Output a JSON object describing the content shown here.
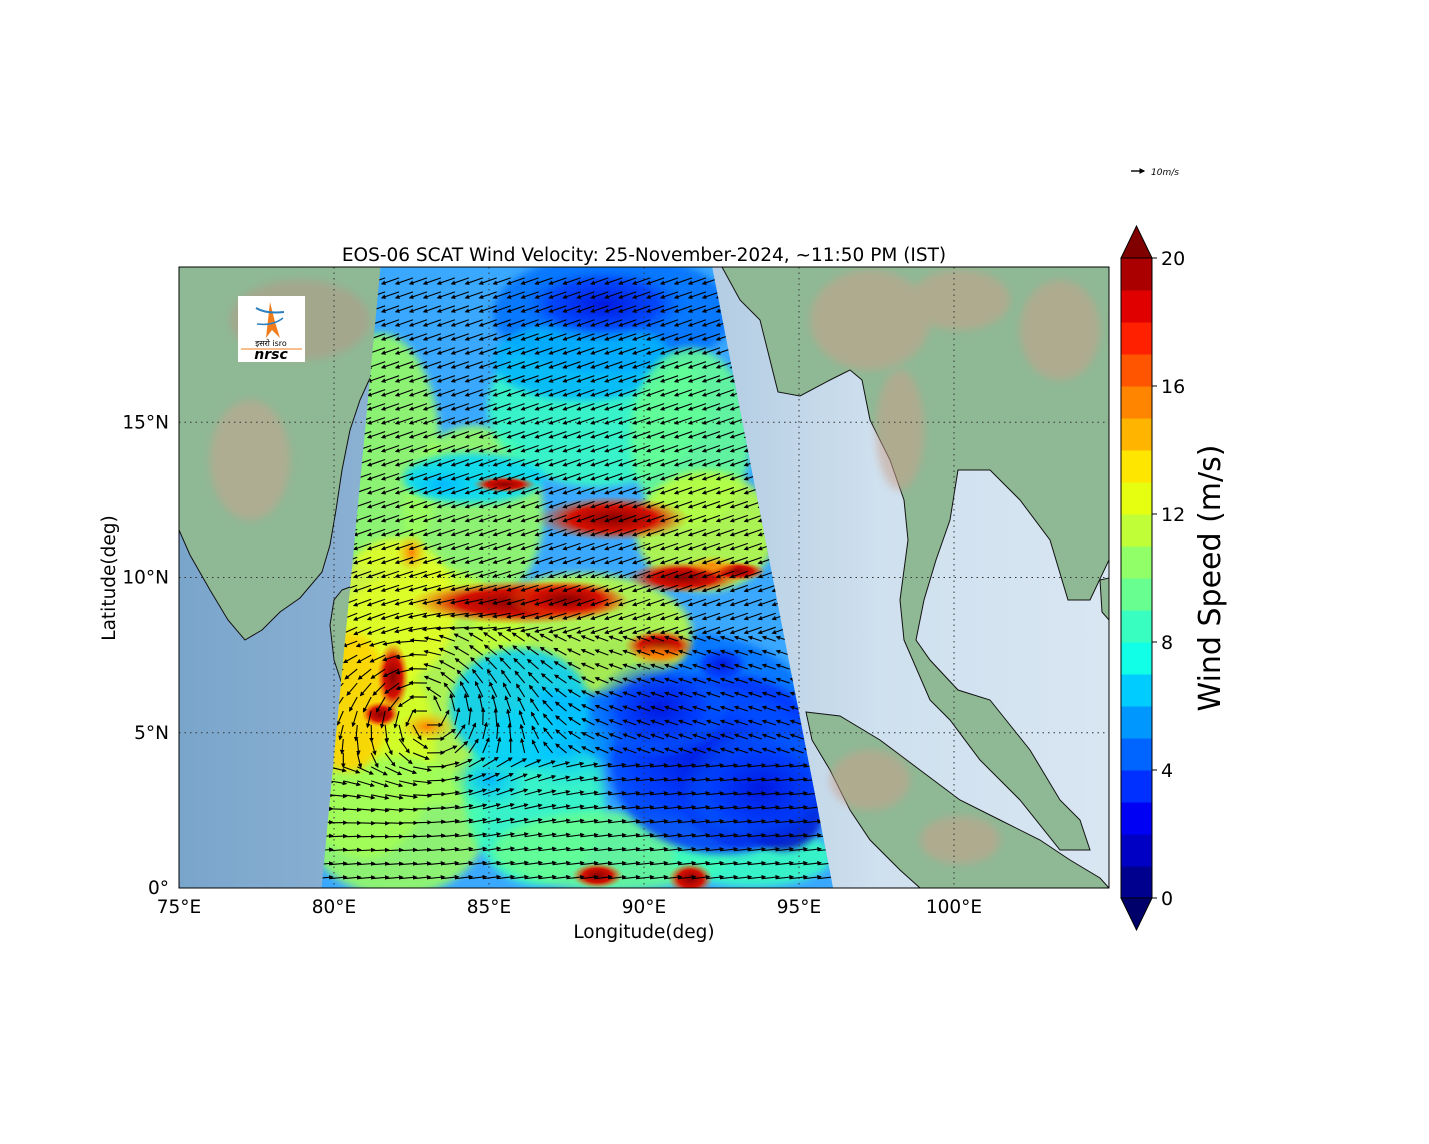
{
  "map": {
    "title": "EOS-06 SCAT Wind Velocity: 25-November-2024, ~11:50 PM (IST)",
    "xlabel": "Longitude(deg)",
    "ylabel": "Latitude(deg)",
    "lon_range": [
      75,
      105
    ],
    "lat_range": [
      0,
      20
    ],
    "x_ticks": [
      {
        "value": 75,
        "label": "75°E"
      },
      {
        "value": 80,
        "label": "80°E"
      },
      {
        "value": 85,
        "label": "85°E"
      },
      {
        "value": 90,
        "label": "90°E"
      },
      {
        "value": 95,
        "label": "95°E"
      },
      {
        "value": 100,
        "label": "100°E"
      }
    ],
    "y_ticks": [
      {
        "value": 0,
        "label": "0°"
      },
      {
        "value": 5,
        "label": "5°N"
      },
      {
        "value": 10,
        "label": "10°N"
      },
      {
        "value": 15,
        "label": "15°N"
      }
    ],
    "quiver_key": {
      "label": "10m/s",
      "speed": 10
    },
    "logo": {
      "text_top": "इसरो isro",
      "text_bottom": "nrsc",
      "accent": "#f07c1c"
    },
    "colors": {
      "ocean_light": "#cfe0ee",
      "ocean_dark": "#7ea8cc",
      "land": "#8db896",
      "land_relief": "#c9a28c",
      "coast": "#111111"
    },
    "swath_corners_lonlat": [
      [
        81.5,
        20
      ],
      [
        92.2,
        20
      ],
      [
        96.1,
        0
      ],
      [
        79.6,
        0
      ]
    ],
    "cyclone_center_lonlat": [
      83.0,
      5.5
    ]
  },
  "colorbar": {
    "label": "Wind Speed (m/s)",
    "min": 0,
    "max": 20,
    "step": 1,
    "extend": "both",
    "ticks": [
      {
        "value": 0,
        "label": "0"
      },
      {
        "value": 4,
        "label": "4"
      },
      {
        "value": 8,
        "label": "8"
      },
      {
        "value": 12,
        "label": "12"
      },
      {
        "value": 16,
        "label": "16"
      },
      {
        "value": 20,
        "label": "20"
      }
    ],
    "colors": [
      "#00008f",
      "#0000c4",
      "#0000f5",
      "#0030ff",
      "#0064ff",
      "#0098ff",
      "#00ccff",
      "#10ffe6",
      "#38ffc0",
      "#68ff90",
      "#90ff68",
      "#c0ff38",
      "#e6ff10",
      "#ffe600",
      "#ffb400",
      "#ff8400",
      "#ff5400",
      "#ff2000",
      "#e00000",
      "#aa0000"
    ],
    "under_color": "#00006a",
    "over_color": "#800000"
  }
}
